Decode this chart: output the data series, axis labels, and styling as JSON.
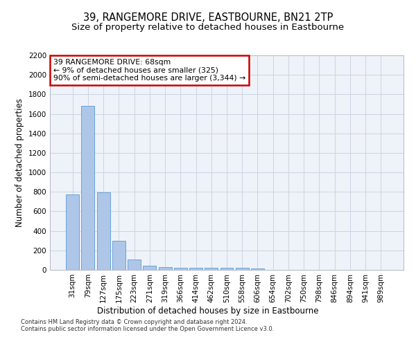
{
  "title": "39, RANGEMORE DRIVE, EASTBOURNE, BN21 2TP",
  "subtitle": "Size of property relative to detached houses in Eastbourne",
  "xlabel": "Distribution of detached houses by size in Eastbourne",
  "ylabel": "Number of detached properties",
  "bar_categories": [
    "31sqm",
    "79sqm",
    "127sqm",
    "175sqm",
    "223sqm",
    "271sqm",
    "319sqm",
    "366sqm",
    "414sqm",
    "462sqm",
    "510sqm",
    "558sqm",
    "606sqm",
    "654sqm",
    "702sqm",
    "750sqm",
    "798sqm",
    "846sqm",
    "894sqm",
    "941sqm",
    "989sqm"
  ],
  "bar_values": [
    775,
    1680,
    795,
    300,
    110,
    45,
    30,
    22,
    20,
    20,
    18,
    20,
    15,
    0,
    0,
    0,
    0,
    0,
    0,
    0,
    0
  ],
  "bar_color": "#aec6e8",
  "bar_edge_color": "#5b9bd5",
  "ylim": [
    0,
    2200
  ],
  "yticks": [
    0,
    200,
    400,
    600,
    800,
    1000,
    1200,
    1400,
    1600,
    1800,
    2000,
    2200
  ],
  "annotation_text": "39 RANGEMORE DRIVE: 68sqm\n← 9% of detached houses are smaller (325)\n90% of semi-detached houses are larger (3,344) →",
  "annotation_box_color": "#ffffff",
  "annotation_box_edge_color": "#cc0000",
  "footer1": "Contains HM Land Registry data © Crown copyright and database right 2024.",
  "footer2": "Contains public sector information licensed under the Open Government Licence v3.0.",
  "bg_color": "#eef2f9",
  "grid_color": "#c8d0de",
  "title_fontsize": 10.5,
  "subtitle_fontsize": 9.5,
  "tick_label_fontsize": 7.5,
  "ylabel_fontsize": 8.5,
  "xlabel_fontsize": 8.5,
  "footer_fontsize": 6.0,
  "annotation_fontsize": 7.8
}
